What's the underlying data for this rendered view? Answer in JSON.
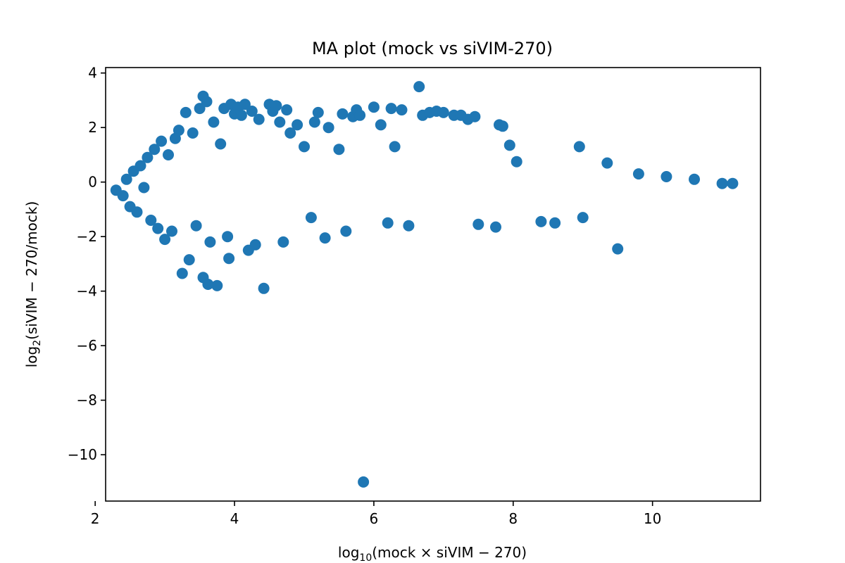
{
  "chart_data": {
    "type": "scatter",
    "title": "MA plot (mock vs siVIM-270)",
    "xlabel": {
      "prefix": "log",
      "subscript": "10",
      "rest": "(mock × siVIM − 270)"
    },
    "ylabel": {
      "prefix": "log",
      "subscript": "2",
      "rest": "(siVIM − 270/mock)"
    },
    "xlim": [
      2.15,
      11.55
    ],
    "ylim": [
      -11.7,
      4.2
    ],
    "xticks": [
      2,
      4,
      6,
      8,
      10
    ],
    "xtick_labels": [
      "2",
      "4",
      "6",
      "8",
      "10"
    ],
    "yticks": [
      4,
      2,
      0,
      -2,
      -4,
      -6,
      -8,
      -10
    ],
    "ytick_labels": [
      "4",
      "2",
      "0",
      "−2",
      "−4",
      "−6",
      "−8",
      "−10"
    ],
    "grid": false,
    "marker_color": "#1f77b4",
    "series": [
      {
        "points": [
          [
            2.3,
            -0.3
          ],
          [
            2.4,
            -0.5
          ],
          [
            2.45,
            0.1
          ],
          [
            2.5,
            -0.9
          ],
          [
            2.55,
            0.4
          ],
          [
            2.6,
            -1.1
          ],
          [
            2.65,
            0.6
          ],
          [
            2.7,
            -0.2
          ],
          [
            2.75,
            0.9
          ],
          [
            2.8,
            -1.4
          ],
          [
            2.85,
            1.2
          ],
          [
            2.9,
            -1.7
          ],
          [
            2.95,
            1.5
          ],
          [
            3.0,
            -2.1
          ],
          [
            3.05,
            1.0
          ],
          [
            3.1,
            -1.8
          ],
          [
            3.15,
            1.6
          ],
          [
            3.2,
            1.9
          ],
          [
            3.25,
            -3.35
          ],
          [
            3.3,
            2.55
          ],
          [
            3.35,
            -2.85
          ],
          [
            3.4,
            1.8
          ],
          [
            3.45,
            -1.6
          ],
          [
            3.5,
            2.7
          ],
          [
            3.55,
            3.15
          ],
          [
            3.55,
            -3.5
          ],
          [
            3.6,
            2.95
          ],
          [
            3.62,
            -3.75
          ],
          [
            3.65,
            -2.2
          ],
          [
            3.7,
            2.2
          ],
          [
            3.75,
            -3.8
          ],
          [
            3.8,
            1.4
          ],
          [
            3.85,
            2.7
          ],
          [
            3.9,
            -2.0
          ],
          [
            3.92,
            -2.8
          ],
          [
            3.95,
            2.85
          ],
          [
            4.0,
            2.5
          ],
          [
            4.05,
            2.75
          ],
          [
            4.1,
            2.45
          ],
          [
            4.15,
            2.85
          ],
          [
            4.2,
            -2.5
          ],
          [
            4.25,
            2.6
          ],
          [
            4.3,
            -2.3
          ],
          [
            4.35,
            2.3
          ],
          [
            4.42,
            -3.9
          ],
          [
            4.5,
            2.85
          ],
          [
            4.55,
            2.6
          ],
          [
            4.6,
            2.8
          ],
          [
            4.65,
            2.2
          ],
          [
            4.7,
            -2.2
          ],
          [
            4.75,
            2.65
          ],
          [
            4.8,
            1.8
          ],
          [
            4.9,
            2.1
          ],
          [
            5.0,
            1.3
          ],
          [
            5.1,
            -1.3
          ],
          [
            5.15,
            2.2
          ],
          [
            5.2,
            2.55
          ],
          [
            5.3,
            -2.05
          ],
          [
            5.35,
            2.0
          ],
          [
            5.5,
            1.2
          ],
          [
            5.55,
            2.5
          ],
          [
            5.6,
            -1.8
          ],
          [
            5.7,
            2.4
          ],
          [
            5.75,
            2.65
          ],
          [
            5.8,
            2.45
          ],
          [
            5.85,
            -11.0
          ],
          [
            6.0,
            2.75
          ],
          [
            6.1,
            2.1
          ],
          [
            6.2,
            -1.5
          ],
          [
            6.25,
            2.7
          ],
          [
            6.3,
            1.3
          ],
          [
            6.4,
            2.65
          ],
          [
            6.5,
            -1.6
          ],
          [
            6.65,
            3.5
          ],
          [
            6.7,
            2.45
          ],
          [
            6.8,
            2.55
          ],
          [
            6.9,
            2.6
          ],
          [
            7.0,
            2.55
          ],
          [
            7.15,
            2.45
          ],
          [
            7.25,
            2.45
          ],
          [
            7.35,
            2.3
          ],
          [
            7.45,
            2.4
          ],
          [
            7.5,
            -1.55
          ],
          [
            7.75,
            -1.65
          ],
          [
            7.8,
            2.1
          ],
          [
            7.85,
            2.05
          ],
          [
            7.95,
            1.35
          ],
          [
            8.05,
            0.75
          ],
          [
            8.4,
            -1.45
          ],
          [
            8.6,
            -1.5
          ],
          [
            8.95,
            1.3
          ],
          [
            9.0,
            -1.3
          ],
          [
            9.35,
            0.7
          ],
          [
            9.5,
            -2.45
          ],
          [
            9.8,
            0.3
          ],
          [
            10.2,
            0.2
          ],
          [
            10.6,
            0.1
          ],
          [
            11.0,
            -0.05
          ],
          [
            11.15,
            -0.05
          ]
        ]
      }
    ]
  }
}
